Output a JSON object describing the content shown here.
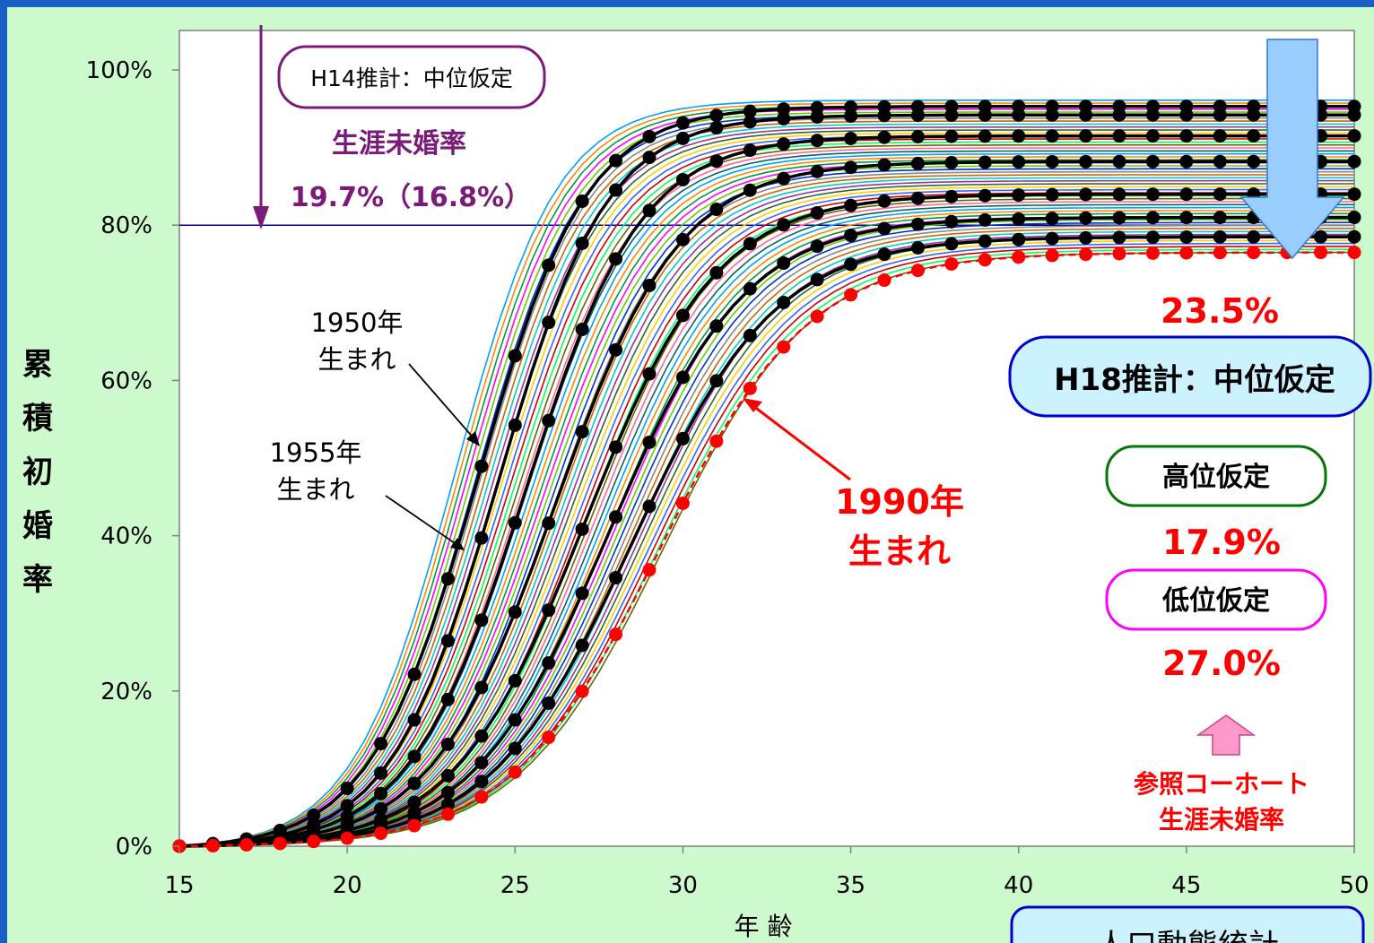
{
  "chart_data": {
    "type": "line",
    "xlabel": "年 齢",
    "ylabel": "累積初婚率",
    "xlim": [
      15,
      50
    ],
    "ylim": [
      0,
      100
    ],
    "xticks": [
      "15",
      "20",
      "25",
      "30",
      "35",
      "40",
      "45",
      "50"
    ],
    "yticks": [
      "0%",
      "20%",
      "40%",
      "60%",
      "80%",
      "100%"
    ],
    "reference_line_y": 80,
    "highlighted_cohorts": [
      {
        "label": "1950年生まれ",
        "final": 95.3,
        "t50": 23.9,
        "k": 0.62
      },
      {
        "label": "1955年生まれ",
        "final": 94.2,
        "t50": 24.5,
        "k": 0.62
      },
      {
        "label": "",
        "final": 91.5,
        "t50": 25.3,
        "k": 0.58
      },
      {
        "label": "",
        "final": 88.2,
        "t50": 26.2,
        "k": 0.54
      },
      {
        "label": "",
        "final": 84.0,
        "t50": 27.1,
        "k": 0.51
      },
      {
        "label": "",
        "final": 81.0,
        "t50": 27.8,
        "k": 0.49
      },
      {
        "label": "",
        "final": 78.5,
        "t50": 28.5,
        "k": 0.47
      },
      {
        "label": "1990年生まれ",
        "final": 76.5,
        "t50": 29.3,
        "k": 0.45
      }
    ],
    "annotations": {
      "h14_label": "H14推計：中位仮定",
      "lifetime_label": "生涯未婚率",
      "h14_value": "19.7%（16.8%）",
      "h18_value": "23.5%",
      "h18_label": "H18推計：中位仮定",
      "high_label": "高位仮定",
      "high_value": "17.9%",
      "low_label": "低位仮定",
      "low_value": "27.0%",
      "ref_label_1": "参照コーホート",
      "ref_label_2": "生涯未婚率",
      "cohort_1950_1": "1950年",
      "cohort_1950_2": "生まれ",
      "cohort_1955_1": "1955年",
      "cohort_1955_2": "生まれ",
      "cohort_1990_1": "1990年",
      "cohort_1990_2": "生まれ",
      "source_label": "人口動態統計"
    },
    "colors": {
      "highlight": "#000000",
      "reference_cohort": "#ff0000",
      "h14": "#7a1a7a",
      "h18_box": "#0000cc",
      "high_box": "#007700",
      "low_box": "#ff00ff",
      "arrow_down": "#99ccff",
      "arrow_up": "#ff99cc",
      "ref_line": "#000080"
    }
  }
}
